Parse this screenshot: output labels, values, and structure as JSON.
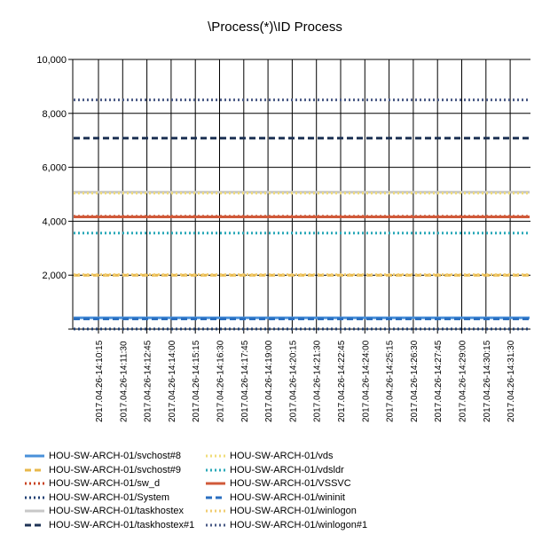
{
  "chart_data": {
    "type": "line",
    "title": "\\Process(*)\\ID Process",
    "xlabel": "",
    "ylabel": "",
    "ylim": [
      0,
      10000
    ],
    "y_ticks": [
      "",
      "2,000",
      "4,000",
      "6,000",
      "8,000",
      "10,000"
    ],
    "y_tick_values": [
      0,
      2000,
      4000,
      6000,
      8000,
      10000
    ],
    "grid": true,
    "legend_position": "bottom",
    "x": [
      "2017.04.26-14:10:15",
      "2017.04.26-14:11:30",
      "2017.04.26-14:12:45",
      "2017.04.26-14:14:00",
      "2017.04.26-14:15:15",
      "2017.04.26-14:16:30",
      "2017.04.26-14:17:45",
      "2017.04.26-14:19:00",
      "2017.04.26-14:20:15",
      "2017.04.26-14:21:30",
      "2017.04.26-14:22:45",
      "2017.04.26-14:24:00",
      "2017.04.26-14:25:15",
      "2017.04.26-14:26:30",
      "2017.04.26-14:27:45",
      "2017.04.26-14:29:00",
      "2017.04.26-14:30:15",
      "2017.04.26-14:31:30"
    ],
    "series": [
      {
        "name": "HOU-SW-ARCH-01/svchost#8",
        "value": 420,
        "color": "#4a90d9",
        "dash": "solid"
      },
      {
        "name": "HOU-SW-ARCH-01/svchost#9",
        "value": 2000,
        "color": "#e8b84b",
        "dash": "dash"
      },
      {
        "name": "HOU-SW-ARCH-01/sw_d",
        "value": 4180,
        "color": "#c8401e",
        "dash": "dot"
      },
      {
        "name": "HOU-SW-ARCH-01/System",
        "value": 4,
        "color": "#1f3f73",
        "dash": "dot"
      },
      {
        "name": "HOU-SW-ARCH-01/taskhostex",
        "value": 5080,
        "color": "#c8c8c8",
        "dash": "solid"
      },
      {
        "name": "HOU-SW-ARCH-01/taskhostex#1",
        "value": 7080,
        "color": "#1f3355",
        "dash": "dash"
      },
      {
        "name": "HOU-SW-ARCH-01/vds",
        "value": 5040,
        "color": "#f0dc7a",
        "dash": "dot"
      },
      {
        "name": "HOU-SW-ARCH-01/vdsldr",
        "value": 3560,
        "color": "#2aa9b8",
        "dash": "dot"
      },
      {
        "name": "HOU-SW-ARCH-01/VSSVC",
        "value": 4160,
        "color": "#d05a3a",
        "dash": "solid"
      },
      {
        "name": "HOU-SW-ARCH-01/wininit",
        "value": 380,
        "color": "#2a6fc0",
        "dash": "dash"
      },
      {
        "name": "HOU-SW-ARCH-01/winlogon",
        "value": 2020,
        "color": "#f0cc70",
        "dash": "dot"
      },
      {
        "name": "HOU-SW-ARCH-01/winlogon#1",
        "value": 8500,
        "color": "#4a5a85",
        "dash": "dot"
      }
    ]
  }
}
